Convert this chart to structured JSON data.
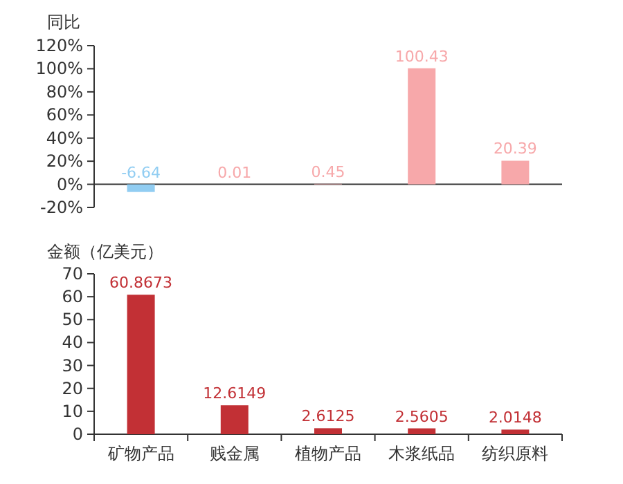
{
  "chart_data": [
    {
      "type": "bar",
      "ylabel": "同比",
      "categories": [
        null,
        null,
        null,
        null,
        null
      ],
      "values": [
        -6.64,
        0.01,
        0.45,
        100.43,
        20.39
      ],
      "colors": [
        "#91cdf2",
        "#f7a8aa",
        "#f7a8aa",
        "#f7a8aa",
        "#f7a8aa"
      ],
      "ylim": [
        -20,
        120
      ],
      "yticks": [
        {
          "value": -20,
          "label": "-20%"
        },
        {
          "value": 0,
          "label": "0%"
        },
        {
          "value": 20,
          "label": "20%"
        },
        {
          "value": 40,
          "label": "40%"
        },
        {
          "value": 60,
          "label": "60%"
        },
        {
          "value": 80,
          "label": "80%"
        },
        {
          "value": 100,
          "label": "100%"
        },
        {
          "value": 120,
          "label": "120%"
        }
      ],
      "data_labels": true,
      "tick_labels": "y"
    },
    {
      "type": "bar",
      "ylabel": "金额（亿美元）",
      "categories": [
        "矿物产品",
        "贱金属",
        "植物产品",
        "木浆纸品",
        "纺织原料"
      ],
      "values": [
        60.8673,
        12.6149,
        2.6125,
        2.5605,
        2.0148
      ],
      "colors": [
        "#c23035",
        "#c23035",
        "#c23035",
        "#c23035",
        "#c23035"
      ],
      "ylim": [
        0,
        70
      ],
      "yticks": [
        0,
        10,
        20,
        30,
        40,
        50,
        60,
        70
      ],
      "data_labels": true
    }
  ]
}
